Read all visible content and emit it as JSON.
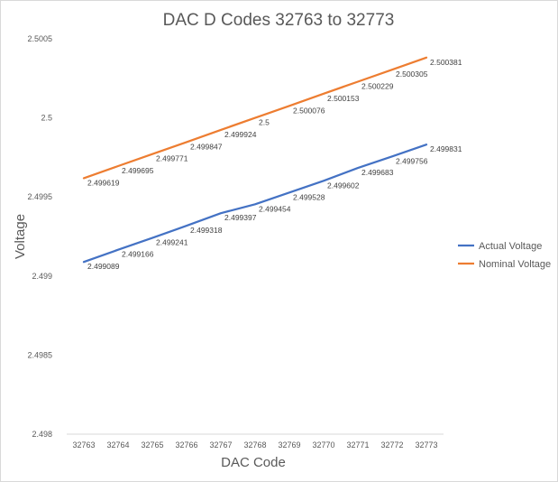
{
  "chart_data": {
    "type": "line",
    "title": "DAC D Codes 32763 to 32773",
    "xlabel": "DAC Code",
    "ylabel": "Voltage",
    "ylim": [
      2.498,
      2.5005
    ],
    "yticks": [
      "2.5005",
      "2.5",
      "2.4995",
      "2.499",
      "2.4985",
      "2.498"
    ],
    "ytick_values": [
      2.5005,
      2.5,
      2.4995,
      2.499,
      2.4985,
      2.498
    ],
    "categories": [
      "32763",
      "32764",
      "32765",
      "32766",
      "32767",
      "32768",
      "32769",
      "32770",
      "32771",
      "32772",
      "32773"
    ],
    "grid": false,
    "legend_position": "right",
    "series": [
      {
        "name": "Actual Voltage",
        "color": "#4472C4",
        "values": [
          2.499089,
          2.499166,
          2.499241,
          2.499318,
          2.499397,
          2.499454,
          2.499528,
          2.499602,
          2.499683,
          2.499756,
          2.499831
        ],
        "labels": [
          "2.499089",
          "2.499166",
          "2.499241",
          "2.499318",
          "2.499397",
          "2.499454",
          "2.499528",
          "2.499602",
          "2.499683",
          "2.499756",
          "2.499831"
        ]
      },
      {
        "name": "Nominal Voltage",
        "color": "#ED7D31",
        "values": [
          2.499619,
          2.499695,
          2.499771,
          2.499847,
          2.499924,
          2.5,
          2.500076,
          2.500153,
          2.500229,
          2.500305,
          2.500381
        ],
        "labels": [
          "2.499619",
          "2.499695",
          "2.499771",
          "2.499847",
          "2.499924",
          "2.5",
          "2.500076",
          "2.500153",
          "2.500229",
          "2.500305",
          "2.500381"
        ]
      }
    ]
  }
}
